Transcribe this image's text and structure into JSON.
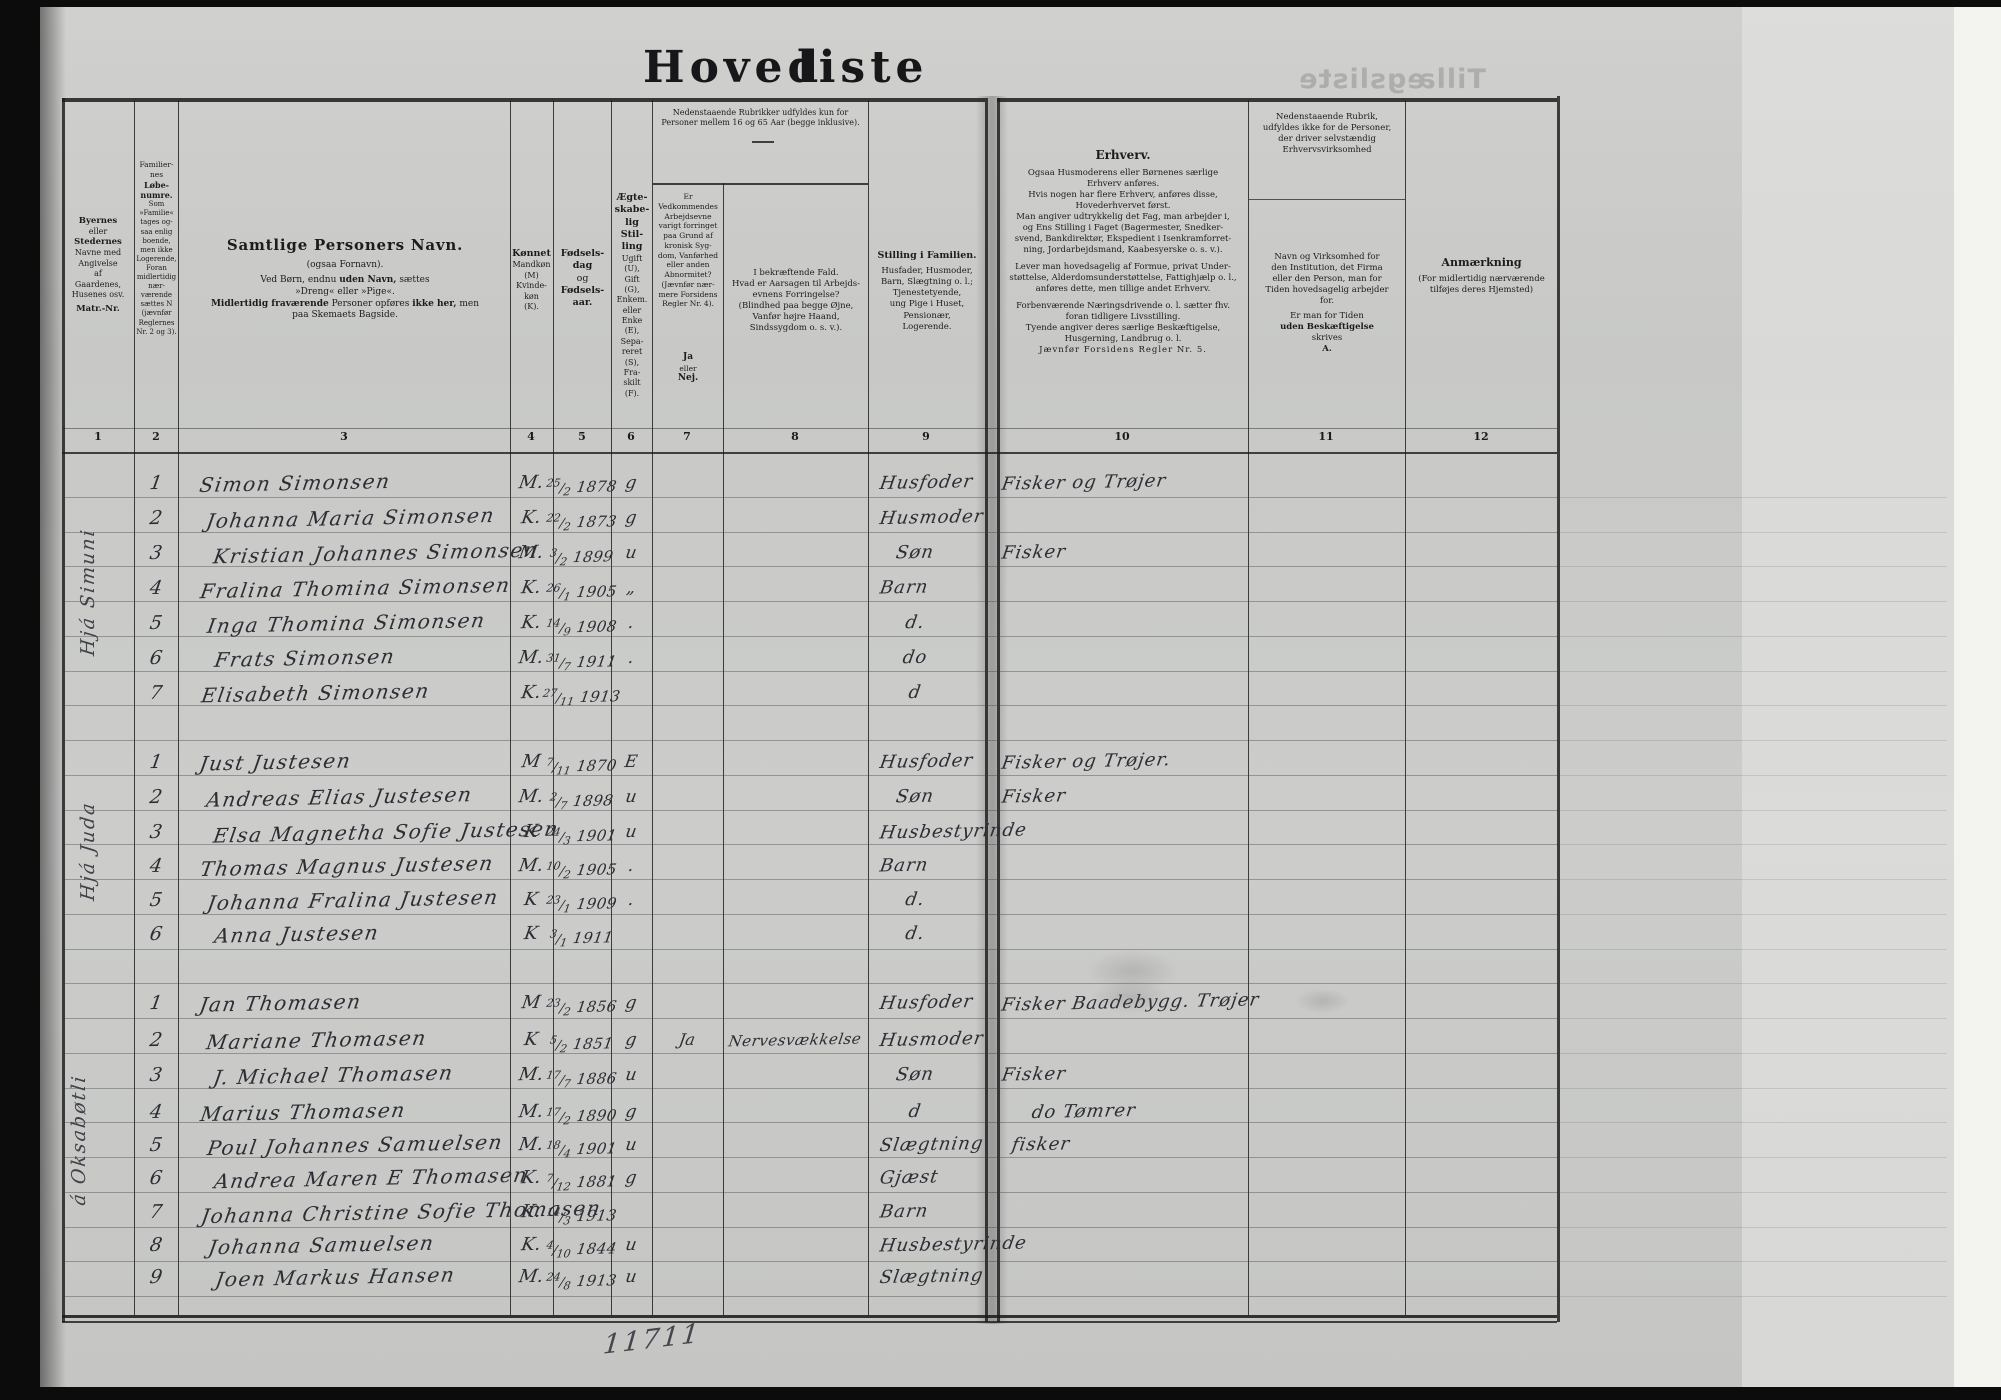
{
  "title": {
    "word1": "Hoved",
    "word2": "liste"
  },
  "bleed_title": "Tillægsliste",
  "page_mark": "11711",
  "header": {
    "col_numbers": [
      "1",
      "2",
      "3",
      "4",
      "5",
      "6",
      "7",
      "8",
      "9",
      "10",
      "11",
      "12"
    ],
    "c1": {
      "b1": "Byernes",
      "r1": "eller",
      "b2": "Stedernes",
      "body": "Navne med\nAngivelse\naf\nGaardenes,\nHusenes osv.",
      "b3": "Matr.-Nr."
    },
    "c2": {
      "r1": "Familier-\nnes",
      "b1": "Løbe-\nnumre.",
      "body": "Som\n»Familie«\ntages og-\nsaa enlig\nboende,\nmen ikke\nLogerende,\nForan\nmidlertidig\nnær-\nværende\nsættes N\n(jævnfør\nReglernes\nNr. 2 og 3)."
    },
    "c3": {
      "b1": "Samtlige Personers Navn.",
      "r1": "(ogsaa Fornavn).",
      "l3a": "Ved Børn, endnu ",
      "l3b": "uden Navn,",
      "l3c": " sættes",
      "r2": "»Dreng« eller »Pige«.",
      "l5a": "Midlertidig fraværende",
      "l5b": " Personer opføres ",
      "l5c": "ikke her,",
      "l5d": " men",
      "r3": "paa Skemaets Bagside."
    },
    "c4": {
      "b1": "Kønnet",
      "body": "Mandkøn\n(M)\nKvinde-\nkøn\n(K)."
    },
    "c5": {
      "b1": "Fødsels-\ndag",
      "r1": "og",
      "b2": "Fødsels-\naar."
    },
    "c6": {
      "b1": "Ægte-\nskabe-\nlig\nStil-\nling",
      "body": "Ugift\n(U),\nGift\n(G),\nEnkem.\neller\nEnke\n(E),\nSepa-\nreret\n(S),\nFra-\nskilt\n(F)."
    },
    "span78": "Nedenstaaende Rubrikker udfyldes kun for\nPersoner mellem 16 og 65 Aar (begge inklusive).",
    "c7": {
      "body": "Er\nVedkommendes\nArbejdsevne\nvarigt forringet\npaa Grund af\nkronisk Syg-\ndom, Vanførhed\neller anden\nAbnormitet?\n(Jævnfør nær-\nmere Forsidens\nRegler Nr. 4).",
      "b1": "Ja",
      "r1": "eller",
      "b2": "Nej."
    },
    "c8": {
      "body": "I bekræftende Fald.\nHvad er Aarsagen til Arbejds-\nevnens Forringelse?\n(Blindhed paa begge Øjne,\nVanfør højre Haand,\nSindssygdom o. s. v.)."
    },
    "c9": {
      "b1": "Stilling i Familien.",
      "body": "Husfader, Husmoder,\nBarn, Slægtning o. l.;\nTjenestetyende,\nung Pige i Huset,\nPensionær,\nLogerende."
    },
    "c10": {
      "b1": "Erhverv.",
      "p1": "Ogsaa Husmoderens eller Børnenes særlige\nErhverv anføres.",
      "p2": "Hvis nogen har flere Erhverv, anføres disse,\nHovederhvervet først.",
      "p3": "Man angiver udtrykkelig det Fag, man arbejder i,\nog Ens Stilling i Faget (Bagermester, Snedker-\nsvend, Bankdirektør, Ekspedient i Isenkramforret-\nning, Jordarbejdsmand, Kaabesyerske o. s. v.).",
      "p4": "Lever man hovedsagelig af Formue, privat Under-\nstøttelse, Alderdomsunderstøttelse, Fattighjælp o. l.,\nanføres dette, men tillige andet Erhverv.",
      "p5": "Forbenværende Næringsdrivende o. l. sætter fhv.\nforan tidligere Livsstilling.\nTyende angiver deres særlige Beskæftigelse,\nHusgerning, Landbrug o. l.",
      "p6": "Jævnfør Forsidens Regler Nr. 5."
    },
    "c11": {
      "top": "Nedenstaaende Rubrik,\nudfyldes ikke for de Personer,\nder driver selvstændig\nErhvervsvirksomhed",
      "main": "Navn og Virksomhed for\nden Institution, det Firma\neller den Person, man for\nTiden hovedsagelig arbejder\nfor.",
      "sub1": "Er man for Tiden",
      "sub2": "uden Beskæftigelse",
      "sub3": "skrives",
      "sub4": "A."
    },
    "c12": {
      "b1": "Anmærkning",
      "body": "(For midlertidig nærværende\ntilføjes deres Hjemsted)"
    }
  },
  "groups": [
    {
      "household": "Hjá Simuni",
      "rows": [
        {
          "no": "1",
          "name": "Simon Simonsen",
          "sex": "M.",
          "bd": "25",
          "bm": "2",
          "by": "1878",
          "marital": "g",
          "impaired": "",
          "cause": "",
          "family": "Husfoder",
          "occupation": "Fisker og Trøjer"
        },
        {
          "no": "2",
          "name": "Johanna Maria Simonsen",
          "sex": "K.",
          "bd": "22",
          "bm": "2",
          "by": "1873",
          "marital": "g",
          "impaired": "",
          "cause": "",
          "family": "Husmoder",
          "occupation": ""
        },
        {
          "no": "3",
          "name": "Kristian Johannes Simonsen",
          "sex": "M.",
          "bd": "3",
          "bm": "2",
          "by": "1899",
          "marital": "u",
          "impaired": "",
          "cause": "",
          "family": "Søn",
          "occupation": "Fisker"
        },
        {
          "no": "4",
          "name": "Fralina Thomina Simonsen",
          "sex": "K.",
          "bd": "26",
          "bm": "1",
          "by": "1905",
          "marital": "„",
          "impaired": "",
          "cause": "",
          "family": "Barn",
          "occupation": ""
        },
        {
          "no": "5",
          "name": "Inga Thomina Simonsen",
          "sex": "K.",
          "bd": "14",
          "bm": "9",
          "by": "1908",
          "marital": ".",
          "impaired": "",
          "cause": "",
          "family": "d.",
          "occupation": ""
        },
        {
          "no": "6",
          "name": "Frats Simonsen",
          "sex": "M.",
          "bd": "31",
          "bm": "7",
          "by": "1911",
          "marital": ".",
          "impaired": "",
          "cause": "",
          "family": "do",
          "occupation": ""
        },
        {
          "no": "7",
          "name": "Elisabeth Simonsen",
          "sex": "K.",
          "bd": "27",
          "bm": "11",
          "by": "1913",
          "marital": "",
          "impaired": "",
          "cause": "",
          "family": "d",
          "occupation": ""
        }
      ]
    },
    {
      "household": "Hjá Juda",
      "rows": [
        {
          "no": "1",
          "name": "Just Justesen",
          "sex": "M",
          "bd": "7",
          "bm": "11",
          "by": "1870",
          "marital": "E",
          "impaired": "",
          "cause": "",
          "family": "Husfoder",
          "occupation": "Fisker og Trøjer."
        },
        {
          "no": "2",
          "name": "Andreas Elias Justesen",
          "sex": "M.",
          "bd": "2",
          "bm": "7",
          "by": "1898",
          "marital": "u",
          "impaired": "",
          "cause": "",
          "family": "Søn",
          "occupation": "Fisker"
        },
        {
          "no": "3",
          "name": "Elsa Magnetha Sofie Justesen",
          "sex": "K",
          "bd": "24",
          "bm": "3",
          "by": "1901",
          "marital": "u",
          "impaired": "",
          "cause": "",
          "family": "Husbestyrinde",
          "occupation": ""
        },
        {
          "no": "4",
          "name": "Thomas Magnus Justesen",
          "sex": "M.",
          "bd": "10",
          "bm": "2",
          "by": "1905",
          "marital": ".",
          "impaired": "",
          "cause": "",
          "family": "Barn",
          "occupation": ""
        },
        {
          "no": "5",
          "name": "Johanna Fralina Justesen",
          "sex": "K",
          "bd": "23",
          "bm": "1",
          "by": "1909",
          "marital": ".",
          "impaired": "",
          "cause": "",
          "family": "d.",
          "occupation": ""
        },
        {
          "no": "6",
          "name": "Anna Justesen",
          "sex": "K",
          "bd": "3",
          "bm": "1",
          "by": "1911",
          "marital": "",
          "impaired": "",
          "cause": "",
          "family": "d.",
          "occupation": ""
        }
      ]
    },
    {
      "household": "á Oksabøtli",
      "rows": [
        {
          "no": "1",
          "name": "Jan Thomasen",
          "sex": "M",
          "bd": "23",
          "bm": "2",
          "by": "1856",
          "marital": "g",
          "impaired": "",
          "cause": "",
          "family": "Husfoder",
          "occupation": "Fisker Baadebygg. Trøjer"
        },
        {
          "no": "2",
          "name": "Mariane Thomasen",
          "sex": "K",
          "bd": "5",
          "bm": "2",
          "by": "1851",
          "marital": "g",
          "impaired": "Ja",
          "cause": "Nervesvækkelse",
          "family": "Husmoder",
          "occupation": ""
        },
        {
          "no": "3",
          "name": "J. Michael Thomasen",
          "sex": "M.",
          "bd": "17",
          "bm": "7",
          "by": "1886",
          "marital": "u",
          "impaired": "",
          "cause": "",
          "family": "Søn",
          "occupation": "Fisker"
        },
        {
          "no": "4",
          "name": "Marius Thomasen",
          "sex": "M.",
          "bd": "17",
          "bm": "2",
          "by": "1890",
          "marital": "g",
          "impaired": "",
          "cause": "",
          "family": "d",
          "occupation": "do Tømrer"
        },
        {
          "no": "5",
          "name": "Poul Johannes Samuelsen",
          "sex": "M.",
          "bd": "18",
          "bm": "4",
          "by": "1901",
          "marital": "u",
          "impaired": "",
          "cause": "",
          "family": "Slægtning",
          "occupation": "fisker"
        },
        {
          "no": "6",
          "name": "Andrea Maren E Thomasen",
          "sex": "K.",
          "bd": "7",
          "bm": "12",
          "by": "1881",
          "marital": "g",
          "impaired": "",
          "cause": "",
          "family": "Gjæst",
          "occupation": ""
        },
        {
          "no": "7",
          "name": "Johanna Christine Sofie Thomasen",
          "sex": "K.",
          "bd": "14",
          "bm": "3",
          "by": "1913",
          "marital": "",
          "impaired": "",
          "cause": "",
          "family": "Barn",
          "occupation": ""
        },
        {
          "no": "8",
          "name": "Johanna Samuelsen",
          "sex": "K.",
          "bd": "4",
          "bm": "10",
          "by": "1844",
          "marital": "u",
          "impaired": "",
          "cause": "",
          "family": "Husbestyrinde",
          "occupation": ""
        },
        {
          "no": "9",
          "name": "Joen Markus Hansen",
          "sex": "M.",
          "bd": "24",
          "bm": "8",
          "by": "1913",
          "marital": "u",
          "impaired": "",
          "cause": "",
          "family": "Slægtning",
          "occupation": ""
        }
      ]
    }
  ]
}
